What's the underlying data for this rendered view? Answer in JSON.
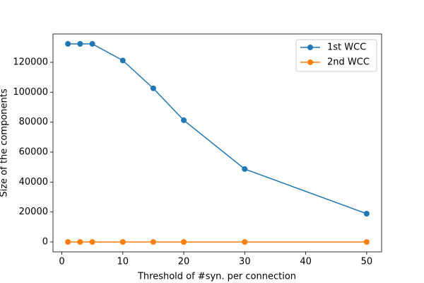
{
  "chart_data": {
    "type": "line",
    "xlabel": "Threshold of #syn. per connection",
    "ylabel": "Size of the components",
    "x": [
      1,
      3,
      5,
      10,
      15,
      20,
      30,
      50
    ],
    "series": [
      {
        "name": "1st WCC",
        "color": "#1f77b4",
        "values": [
          132300,
          132300,
          132300,
          121200,
          102600,
          81300,
          48700,
          18900
        ]
      },
      {
        "name": "2nd WCC",
        "color": "#ff7f0e",
        "values": [
          0,
          0,
          0,
          0,
          0,
          0,
          0,
          0
        ]
      }
    ],
    "xlim": [
      -1.45,
      52.45
    ],
    "xticks": [
      0,
      10,
      20,
      30,
      40,
      50
    ],
    "ylim": [
      -6615,
      138915
    ],
    "yticks": [
      0,
      20000,
      40000,
      60000,
      80000,
      100000,
      120000
    ],
    "legend": "upper right",
    "grid": false,
    "markers": true
  }
}
